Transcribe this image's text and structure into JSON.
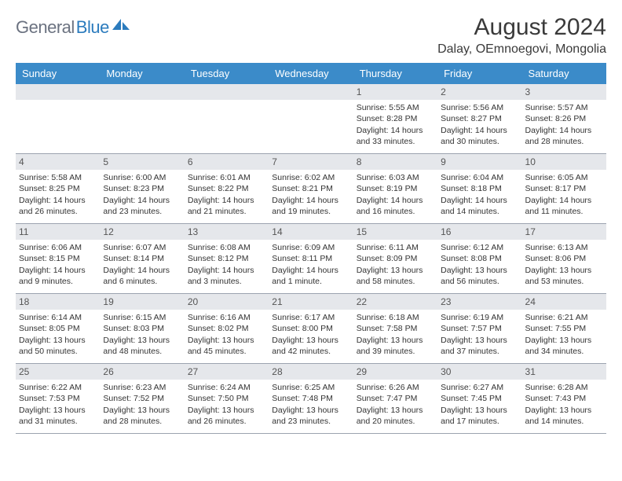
{
  "logo": {
    "part1": "General",
    "part2": "Blue"
  },
  "title": "August 2024",
  "location": "Dalay, OEmnoegovi, Mongolia",
  "colors": {
    "header_bg": "#3b8bc9",
    "daynum_bg": "#e5e7eb",
    "text": "#333333",
    "logo_gray": "#6b7280",
    "logo_blue": "#2b7bbd"
  },
  "weekdays": [
    "Sunday",
    "Monday",
    "Tuesday",
    "Wednesday",
    "Thursday",
    "Friday",
    "Saturday"
  ],
  "weeks": [
    [
      {
        "blank": true
      },
      {
        "blank": true
      },
      {
        "blank": true
      },
      {
        "blank": true
      },
      {
        "n": "1",
        "sr": "5:55 AM",
        "ss": "8:28 PM",
        "dl": "14 hours and 33 minutes."
      },
      {
        "n": "2",
        "sr": "5:56 AM",
        "ss": "8:27 PM",
        "dl": "14 hours and 30 minutes."
      },
      {
        "n": "3",
        "sr": "5:57 AM",
        "ss": "8:26 PM",
        "dl": "14 hours and 28 minutes."
      }
    ],
    [
      {
        "n": "4",
        "sr": "5:58 AM",
        "ss": "8:25 PM",
        "dl": "14 hours and 26 minutes."
      },
      {
        "n": "5",
        "sr": "6:00 AM",
        "ss": "8:23 PM",
        "dl": "14 hours and 23 minutes."
      },
      {
        "n": "6",
        "sr": "6:01 AM",
        "ss": "8:22 PM",
        "dl": "14 hours and 21 minutes."
      },
      {
        "n": "7",
        "sr": "6:02 AM",
        "ss": "8:21 PM",
        "dl": "14 hours and 19 minutes."
      },
      {
        "n": "8",
        "sr": "6:03 AM",
        "ss": "8:19 PM",
        "dl": "14 hours and 16 minutes."
      },
      {
        "n": "9",
        "sr": "6:04 AM",
        "ss": "8:18 PM",
        "dl": "14 hours and 14 minutes."
      },
      {
        "n": "10",
        "sr": "6:05 AM",
        "ss": "8:17 PM",
        "dl": "14 hours and 11 minutes."
      }
    ],
    [
      {
        "n": "11",
        "sr": "6:06 AM",
        "ss": "8:15 PM",
        "dl": "14 hours and 9 minutes."
      },
      {
        "n": "12",
        "sr": "6:07 AM",
        "ss": "8:14 PM",
        "dl": "14 hours and 6 minutes."
      },
      {
        "n": "13",
        "sr": "6:08 AM",
        "ss": "8:12 PM",
        "dl": "14 hours and 3 minutes."
      },
      {
        "n": "14",
        "sr": "6:09 AM",
        "ss": "8:11 PM",
        "dl": "14 hours and 1 minute."
      },
      {
        "n": "15",
        "sr": "6:11 AM",
        "ss": "8:09 PM",
        "dl": "13 hours and 58 minutes."
      },
      {
        "n": "16",
        "sr": "6:12 AM",
        "ss": "8:08 PM",
        "dl": "13 hours and 56 minutes."
      },
      {
        "n": "17",
        "sr": "6:13 AM",
        "ss": "8:06 PM",
        "dl": "13 hours and 53 minutes."
      }
    ],
    [
      {
        "n": "18",
        "sr": "6:14 AM",
        "ss": "8:05 PM",
        "dl": "13 hours and 50 minutes."
      },
      {
        "n": "19",
        "sr": "6:15 AM",
        "ss": "8:03 PM",
        "dl": "13 hours and 48 minutes."
      },
      {
        "n": "20",
        "sr": "6:16 AM",
        "ss": "8:02 PM",
        "dl": "13 hours and 45 minutes."
      },
      {
        "n": "21",
        "sr": "6:17 AM",
        "ss": "8:00 PM",
        "dl": "13 hours and 42 minutes."
      },
      {
        "n": "22",
        "sr": "6:18 AM",
        "ss": "7:58 PM",
        "dl": "13 hours and 39 minutes."
      },
      {
        "n": "23",
        "sr": "6:19 AM",
        "ss": "7:57 PM",
        "dl": "13 hours and 37 minutes."
      },
      {
        "n": "24",
        "sr": "6:21 AM",
        "ss": "7:55 PM",
        "dl": "13 hours and 34 minutes."
      }
    ],
    [
      {
        "n": "25",
        "sr": "6:22 AM",
        "ss": "7:53 PM",
        "dl": "13 hours and 31 minutes."
      },
      {
        "n": "26",
        "sr": "6:23 AM",
        "ss": "7:52 PM",
        "dl": "13 hours and 28 minutes."
      },
      {
        "n": "27",
        "sr": "6:24 AM",
        "ss": "7:50 PM",
        "dl": "13 hours and 26 minutes."
      },
      {
        "n": "28",
        "sr": "6:25 AM",
        "ss": "7:48 PM",
        "dl": "13 hours and 23 minutes."
      },
      {
        "n": "29",
        "sr": "6:26 AM",
        "ss": "7:47 PM",
        "dl": "13 hours and 20 minutes."
      },
      {
        "n": "30",
        "sr": "6:27 AM",
        "ss": "7:45 PM",
        "dl": "13 hours and 17 minutes."
      },
      {
        "n": "31",
        "sr": "6:28 AM",
        "ss": "7:43 PM",
        "dl": "13 hours and 14 minutes."
      }
    ]
  ],
  "labels": {
    "sunrise": "Sunrise: ",
    "sunset": "Sunset: ",
    "daylight": "Daylight: "
  }
}
